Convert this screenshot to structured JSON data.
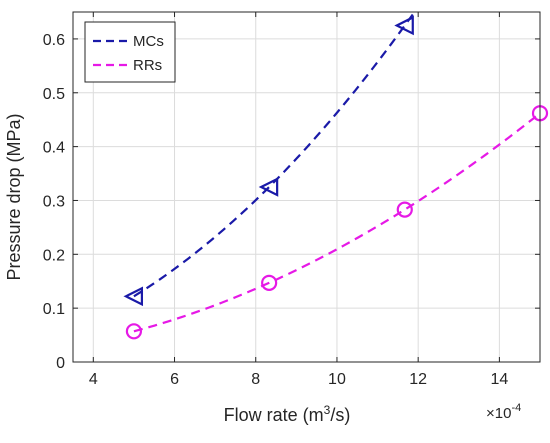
{
  "chart_data": {
    "type": "line",
    "xlabel_base": "Flow rate (m",
    "xlabel_sup": "3",
    "xlabel_tail": "/s)",
    "ylabel": "Pressure drop (MPa)",
    "x_multiplier_base": "×10",
    "x_multiplier_exp": "-4",
    "xlim": [
      3.5,
      15
    ],
    "ylim": [
      0,
      0.65
    ],
    "xticks": [
      4,
      6,
      8,
      10,
      12,
      14
    ],
    "yticks": [
      0,
      0.1,
      0.2,
      0.3,
      0.4,
      0.5,
      0.6
    ],
    "xtick_labels": [
      "4",
      "6",
      "8",
      "10",
      "12",
      "14"
    ],
    "ytick_labels": [
      "0",
      "0.1",
      "0.2",
      "0.3",
      "0.4",
      "0.5",
      "0.6"
    ],
    "grid": true,
    "legend_position": "top-left",
    "series": [
      {
        "name": "MCs",
        "color": "#1a1aa8",
        "marker": "triangle-left",
        "x": [
          5,
          8.33,
          11.67
        ],
        "y": [
          0.122,
          0.325,
          0.625
        ]
      },
      {
        "name": "RRs",
        "color": "#e619e6",
        "marker": "circle",
        "x": [
          5,
          8.33,
          11.67,
          15
        ],
        "y": [
          0.057,
          0.147,
          0.283,
          0.462
        ]
      }
    ]
  }
}
